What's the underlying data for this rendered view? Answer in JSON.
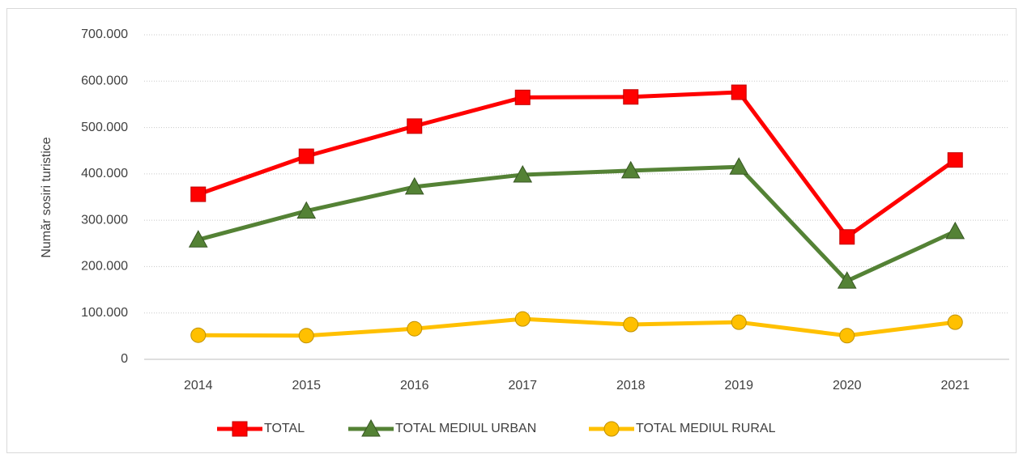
{
  "chart_data": {
    "type": "line",
    "y_label": "Număr sosiri turistice",
    "categories": [
      "2014",
      "2015",
      "2016",
      "2017",
      "2018",
      "2019",
      "2020",
      "2021"
    ],
    "series": [
      {
        "name": "TOTAL",
        "color": "#ff0000",
        "marker": "square",
        "values": [
          356000,
          438000,
          503000,
          565000,
          566000,
          576000,
          264000,
          430000
        ]
      },
      {
        "name": "TOTAL MEDIUL URBAN",
        "color": "#548235",
        "marker": "triangle",
        "values": [
          258000,
          320000,
          372000,
          398000,
          407000,
          415000,
          169000,
          276000
        ]
      },
      {
        "name": "TOTAL MEDIUL RURAL",
        "color": "#ffc000",
        "marker": "circle",
        "values": [
          52000,
          51000,
          66000,
          87000,
          75000,
          80000,
          51000,
          80000
        ]
      }
    ],
    "ylim": [
      0,
      700000
    ],
    "yticks": [
      0,
      {
        "value": 100000,
        "label": "100.000"
      },
      {
        "value": 200000,
        "label": "200.000"
      },
      {
        "value": 300000,
        "label": "300.000"
      },
      {
        "value": 400000,
        "label": "400.000"
      },
      {
        "value": 500000,
        "label": "500.000"
      },
      {
        "value": 600000,
        "label": "600.000"
      },
      {
        "value": 700000,
        "label": "700.000"
      }
    ],
    "grid": true,
    "legend": "bottom"
  }
}
